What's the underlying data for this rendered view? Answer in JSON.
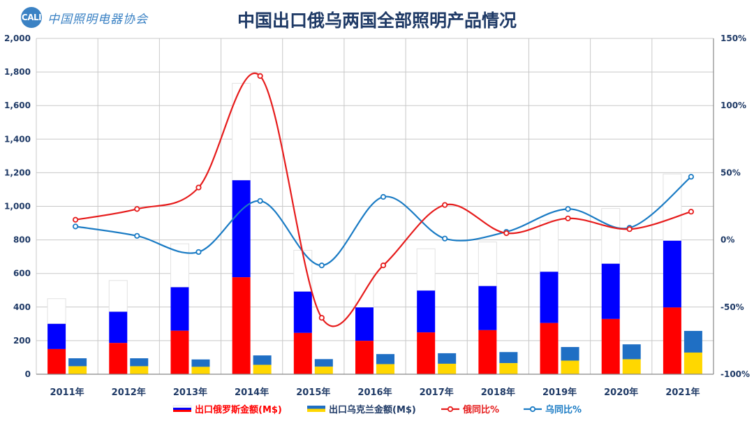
{
  "header": {
    "logo_mark": "CALI",
    "logo_text": "中国照明电器协会",
    "title": "中国出口俄乌两国全部照明产品情况"
  },
  "colors": {
    "russia_red": "#ff0000",
    "russia_blue": "#0000ff",
    "ukraine_blue": "#1f6fc4",
    "ukraine_yellow": "#ffd700",
    "ru_line": "#e61c1c",
    "ua_line": "#1a7bc4",
    "axis_text": "#1f3a66",
    "grid": "#c8c8c8"
  },
  "chart_data": {
    "type": "bar",
    "title": "中国出口俄乌两国全部照明产品情况",
    "categories": [
      "2011年",
      "2012年",
      "2013年",
      "2014年",
      "2015年",
      "2016年",
      "2017年",
      "2018年",
      "2019年",
      "2020年",
      "2021年"
    ],
    "left_axis": {
      "min": 0,
      "max": 2000,
      "step": 200,
      "ticks": [
        "0",
        "200",
        "400",
        "600",
        "800",
        "1,000",
        "1,200",
        "1,400",
        "1,600",
        "1,800",
        "2,000"
      ]
    },
    "right_axis": {
      "min": -100,
      "max": 150,
      "step": 50,
      "ticks": [
        "-100%",
        "-50%",
        "0%",
        "50%",
        "100%",
        "150%"
      ]
    },
    "grid": true,
    "legend_position": "bottom",
    "series": [
      {
        "name": "出口俄罗斯金额(M$)",
        "type": "bar",
        "values": [
          300,
          372,
          518,
          1155,
          492,
          398,
          498,
          525,
          610,
          658,
          795
        ]
      },
      {
        "name": "出口乌克兰金额(M$)",
        "type": "bar",
        "values": [
          95,
          95,
          88,
          112,
          90,
          120,
          125,
          132,
          162,
          178,
          258
        ]
      },
      {
        "name": "俄同比%",
        "type": "line",
        "axis": "right",
        "values": [
          15,
          23,
          39,
          122,
          -58,
          -19,
          26,
          5,
          16,
          8,
          21
        ]
      },
      {
        "name": "乌同比%",
        "type": "line",
        "axis": "right",
        "values": [
          10,
          3,
          -9,
          29,
          -19,
          32,
          1,
          6,
          23,
          9,
          47
        ]
      }
    ]
  }
}
